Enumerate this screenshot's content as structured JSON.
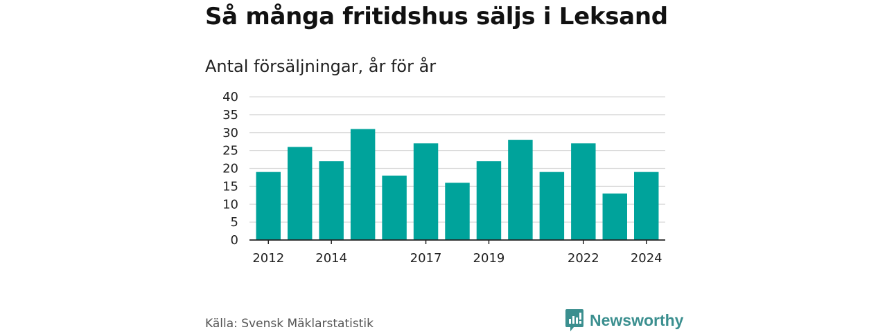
{
  "title": "Så många fritidshus säljs i Leksand",
  "subtitle": "Antal försäljningar, år för år",
  "source": "Källa: Svensk Mäklarstatistik",
  "brand": {
    "name": "Newsworthy",
    "icon": "bar-chart-logo-icon",
    "color": "#3b8f8f"
  },
  "colors": {
    "bar": "#00a39b",
    "grid": "#d9d9d9",
    "axis": "#222222"
  },
  "chart_data": {
    "type": "bar",
    "title": "Så många fritidshus säljs i Leksand",
    "subtitle": "Antal försäljningar, år för år",
    "categories": [
      "2012",
      "2013",
      "2014",
      "2015",
      "2016",
      "2017",
      "2018",
      "2019",
      "2020",
      "2021",
      "2022",
      "2023",
      "2024"
    ],
    "values": [
      19,
      26,
      22,
      31,
      18,
      27,
      16,
      22,
      28,
      19,
      27,
      13,
      19
    ],
    "x_tick_labels": [
      "2012",
      "2014",
      "2017",
      "2019",
      "2022",
      "2024"
    ],
    "y_ticks": [
      0,
      5,
      10,
      15,
      20,
      25,
      30,
      35,
      40
    ],
    "ylim": [
      0,
      40
    ],
    "grid": true,
    "legend": "none"
  }
}
